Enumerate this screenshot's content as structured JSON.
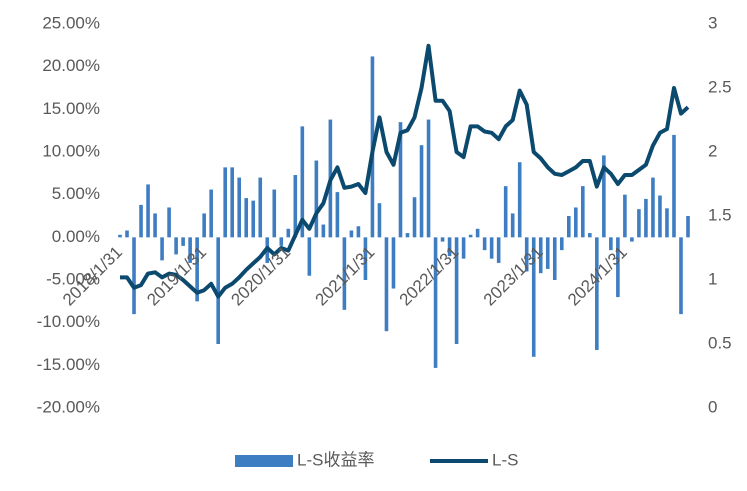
{
  "chart_data": {
    "type": "bar-line",
    "categories": [
      "2018/1/31",
      null,
      null,
      null,
      null,
      null,
      null,
      null,
      null,
      null,
      null,
      null,
      "2019/1/31",
      null,
      null,
      null,
      null,
      null,
      null,
      null,
      null,
      null,
      null,
      null,
      "2020/1/31",
      null,
      null,
      null,
      null,
      null,
      null,
      null,
      null,
      null,
      null,
      null,
      "2021/1/31",
      null,
      null,
      null,
      null,
      null,
      null,
      null,
      null,
      null,
      null,
      null,
      "2022/1/31",
      null,
      null,
      null,
      null,
      null,
      null,
      null,
      null,
      null,
      null,
      null,
      "2023/1/31",
      null,
      null,
      null,
      null,
      null,
      null,
      null,
      null,
      null,
      null,
      null,
      "2024/1/31",
      null,
      null,
      null,
      null,
      null,
      null,
      null,
      null,
      null
    ],
    "series": [
      {
        "name": "L-S收益率",
        "color": "#3e7dc1",
        "axis": "y",
        "values": [
          0.3,
          0.8,
          -9,
          3.8,
          6.2,
          2.8,
          -2.7,
          3.5,
          -2,
          -1,
          -3,
          -7.5,
          2.8,
          5.6,
          -12.5,
          8.2,
          8.2,
          7,
          4.6,
          4.3,
          7,
          -3,
          5.6,
          -1,
          1,
          7.3,
          13,
          -4.5,
          9,
          1.5,
          13.8,
          5.3,
          -8.5,
          0.8,
          1.3,
          -5,
          21.2,
          4,
          -11,
          -6,
          13.5,
          0.5,
          4.7,
          10.8,
          13.8,
          -15.3,
          -0.5,
          -2.2,
          -12.5,
          -2.5,
          0.3,
          1,
          -1.5,
          -2.5,
          -3,
          6,
          2.8,
          8.8,
          -4,
          -14,
          -4.2,
          -3.7,
          -5,
          -1.5,
          2.5,
          3.5,
          6,
          0.5,
          -13.2,
          9.6,
          -1.5,
          -7,
          5,
          -0.5,
          3.3,
          4.5,
          7,
          4.9,
          3.4,
          12,
          -9,
          2.5
        ]
      },
      {
        "name": "L-S",
        "color": "#0b4a6e",
        "axis": "y2",
        "values": [
          1.02,
          1.02,
          0.94,
          0.96,
          1.05,
          1.06,
          1.02,
          1.05,
          1.04,
          1.0,
          0.95,
          0.9,
          0.92,
          0.97,
          0.87,
          0.94,
          0.97,
          1.02,
          1.08,
          1.13,
          1.18,
          1.25,
          1.2,
          1.25,
          1.23,
          1.35,
          1.47,
          1.4,
          1.52,
          1.6,
          1.78,
          1.88,
          1.72,
          1.73,
          1.75,
          1.68,
          2.0,
          2.27,
          2.0,
          1.9,
          2.15,
          2.17,
          2.27,
          2.5,
          2.83,
          2.4,
          2.4,
          2.32,
          2.0,
          1.96,
          2.2,
          2.2,
          2.16,
          2.15,
          2.1,
          2.2,
          2.25,
          2.48,
          2.37,
          2.0,
          1.95,
          1.88,
          1.83,
          1.82,
          1.85,
          1.88,
          1.93,
          1.93,
          1.73,
          1.88,
          1.83,
          1.75,
          1.82,
          1.82,
          1.86,
          1.9,
          2.05,
          2.15,
          2.18,
          2.5,
          2.3,
          2.35
        ]
      }
    ],
    "ylim": [
      -20,
      25
    ],
    "yticks": [
      {
        "value": -20,
        "label": "-20.00%"
      },
      {
        "value": -15,
        "label": "-15.00%"
      },
      {
        "value": -10,
        "label": "-10.00%"
      },
      {
        "value": -5,
        "label": "-5.00%"
      },
      {
        "value": 0,
        "label": "0.00%"
      },
      {
        "value": 5,
        "label": "5.00%"
      },
      {
        "value": 10,
        "label": "10.00%"
      },
      {
        "value": 15,
        "label": "15.00%"
      },
      {
        "value": 20,
        "label": "20.00%"
      },
      {
        "value": 25,
        "label": "25.00%"
      }
    ],
    "y2lim": [
      0,
      3
    ],
    "y2ticks": [
      0,
      0.5,
      1,
      1.5,
      2,
      2.5,
      3
    ],
    "legend": "bottom"
  }
}
